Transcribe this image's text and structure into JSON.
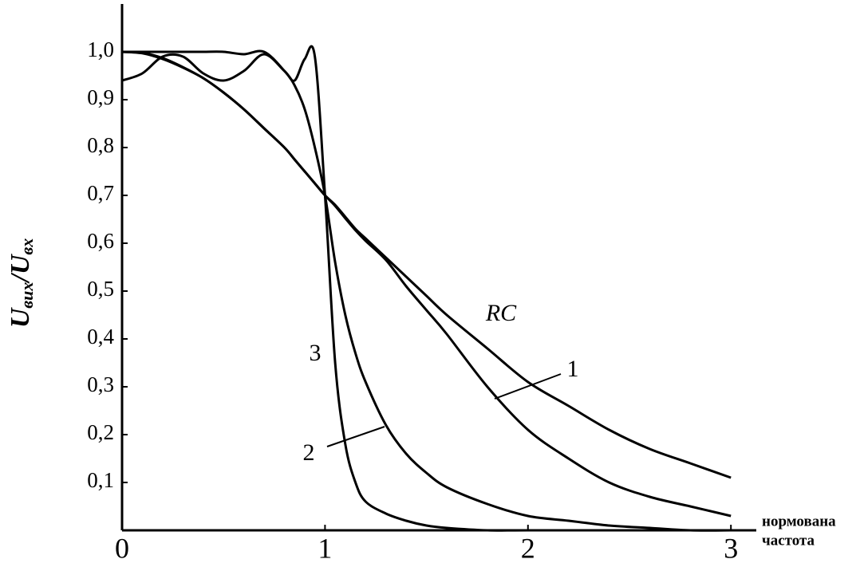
{
  "chart_data": {
    "type": "line",
    "y_label": {
      "u1": "U",
      "sub1": "вих",
      "slash": "/",
      "u2": "U",
      "sub2": "вх"
    },
    "x_label": [
      "нормована",
      "частота"
    ],
    "annotations": [
      "RC",
      "1",
      "2",
      "3"
    ],
    "x": [
      0,
      0.1,
      0.2,
      0.3,
      0.4,
      0.5,
      0.6,
      0.7,
      0.8,
      0.85,
      0.9,
      0.95,
      1.0,
      1.05,
      1.1,
      1.15,
      1.2,
      1.3,
      1.4,
      1.5,
      1.6,
      1.8,
      2.0,
      2.2,
      2.4,
      2.6,
      2.8,
      3.0
    ],
    "series": [
      {
        "name": "RC",
        "color": "#000000",
        "values": [
          1.0,
          0.997,
          0.985,
          0.967,
          0.945,
          0.915,
          0.88,
          0.84,
          0.8,
          0.775,
          0.75,
          0.725,
          0.7,
          0.68,
          0.655,
          0.63,
          0.61,
          0.57,
          0.53,
          0.49,
          0.45,
          0.38,
          0.31,
          0.26,
          0.21,
          0.17,
          0.14,
          0.11
        ]
      },
      {
        "name": "1",
        "color": "#000000",
        "values": [
          1.0,
          0.998,
          0.987,
          0.968,
          0.945,
          0.915,
          0.88,
          0.84,
          0.8,
          0.775,
          0.75,
          0.725,
          0.7,
          0.678,
          0.652,
          0.627,
          0.605,
          0.565,
          0.51,
          0.46,
          0.41,
          0.3,
          0.21,
          0.15,
          0.1,
          0.07,
          0.05,
          0.03
        ]
      },
      {
        "name": "2",
        "color": "#000000",
        "values": [
          1.0,
          1.0,
          1.0,
          1.0,
          1.0,
          1.0,
          0.995,
          1.0,
          0.96,
          0.93,
          0.88,
          0.8,
          0.7,
          0.56,
          0.45,
          0.37,
          0.31,
          0.22,
          0.16,
          0.12,
          0.09,
          0.055,
          0.03,
          0.02,
          0.01,
          0.005,
          0,
          0
        ]
      },
      {
        "name": "3",
        "color": "#000000",
        "values": [
          0.94,
          0.955,
          0.99,
          0.99,
          0.955,
          0.94,
          0.96,
          0.995,
          0.96,
          0.94,
          0.985,
          0.99,
          0.7,
          0.35,
          0.18,
          0.1,
          0.06,
          0.035,
          0.02,
          0.01,
          0.005,
          0,
          0,
          0,
          0,
          0,
          0,
          0
        ]
      }
    ],
    "xlim": [
      0,
      3.125
    ],
    "ylim": [
      0,
      1.1
    ],
    "xticks": [
      0,
      1,
      2,
      3
    ],
    "yticks": [
      {
        "value": 0.1,
        "label": "0,1"
      },
      {
        "value": 0.2,
        "label": "0,2"
      },
      {
        "value": 0.3,
        "label": "0,3"
      },
      {
        "value": 0.4,
        "label": "0,4"
      },
      {
        "value": 0.5,
        "label": "0,5"
      },
      {
        "value": 0.6,
        "label": "0,6"
      },
      {
        "value": 0.7,
        "label": "0,7"
      },
      {
        "value": 0.8,
        "label": "0,8"
      },
      {
        "value": 0.9,
        "label": "0,9"
      },
      {
        "value": 1.0,
        "label": "1,0"
      }
    ],
    "grid": false
  }
}
